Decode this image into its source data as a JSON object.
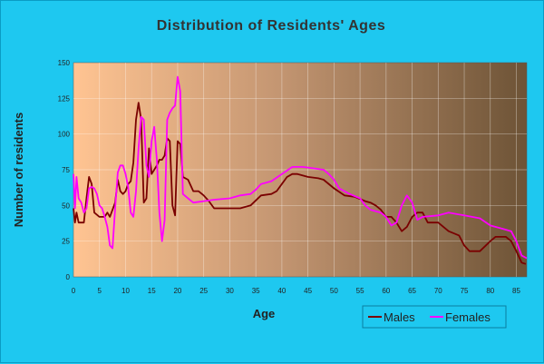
{
  "chart_data": {
    "type": "line",
    "title": "Distribution of Residents' Ages",
    "xlabel": "Age",
    "ylabel": "Number of residents",
    "xlim": [
      0,
      87
    ],
    "ylim": [
      0,
      150
    ],
    "x_ticks": [
      "0",
      "5",
      "10",
      "15",
      "20",
      "25",
      "30",
      "35",
      "40",
      "45",
      "50",
      "55",
      "60",
      "65",
      "70",
      "75",
      "80",
      "85"
    ],
    "y_ticks": [
      "0",
      "25",
      "50",
      "75",
      "100",
      "125",
      "150"
    ],
    "legend_position": "bottom-right",
    "grid": true,
    "series": [
      {
        "name": "Males",
        "color": "#7a0000",
        "points": [
          [
            0,
            48
          ],
          [
            0.3,
            38
          ],
          [
            0.6,
            45
          ],
          [
            1,
            38
          ],
          [
            2,
            38
          ],
          [
            2.5,
            55
          ],
          [
            3,
            70
          ],
          [
            3.5,
            65
          ],
          [
            4,
            45
          ],
          [
            5,
            42
          ],
          [
            6,
            42
          ],
          [
            6.5,
            45
          ],
          [
            7,
            42
          ],
          [
            8,
            52
          ],
          [
            8.5,
            68
          ],
          [
            9,
            60
          ],
          [
            9.5,
            58
          ],
          [
            10,
            60
          ],
          [
            10.5,
            65
          ],
          [
            11,
            67
          ],
          [
            11.5,
            80
          ],
          [
            12,
            110
          ],
          [
            12.5,
            122
          ],
          [
            13,
            110
          ],
          [
            13.5,
            52
          ],
          [
            14,
            55
          ],
          [
            14.5,
            90
          ],
          [
            15,
            72
          ],
          [
            15.5,
            75
          ],
          [
            16,
            78
          ],
          [
            16.5,
            82
          ],
          [
            17,
            82
          ],
          [
            17.5,
            85
          ],
          [
            18,
            97
          ],
          [
            18.5,
            95
          ],
          [
            19,
            50
          ],
          [
            19.5,
            43
          ],
          [
            20,
            95
          ],
          [
            20.5,
            93
          ],
          [
            21,
            70
          ],
          [
            22,
            68
          ],
          [
            23,
            60
          ],
          [
            24,
            60
          ],
          [
            25,
            57
          ],
          [
            26,
            53
          ],
          [
            27,
            48
          ],
          [
            28,
            48
          ],
          [
            30,
            48
          ],
          [
            32,
            48
          ],
          [
            34,
            50
          ],
          [
            36,
            57
          ],
          [
            38,
            58
          ],
          [
            39,
            60
          ],
          [
            40,
            65
          ],
          [
            41,
            70
          ],
          [
            42,
            72
          ],
          [
            43,
            72
          ],
          [
            45,
            70
          ],
          [
            47,
            69
          ],
          [
            48,
            68
          ],
          [
            50,
            62
          ],
          [
            52,
            57
          ],
          [
            54,
            56
          ],
          [
            56,
            53
          ],
          [
            57,
            52
          ],
          [
            58,
            50
          ],
          [
            59,
            47
          ],
          [
            60,
            42
          ],
          [
            61,
            42
          ],
          [
            62,
            38
          ],
          [
            63,
            32
          ],
          [
            64,
            35
          ],
          [
            65,
            42
          ],
          [
            66,
            45
          ],
          [
            67,
            45
          ],
          [
            68,
            38
          ],
          [
            70,
            38
          ],
          [
            72,
            32
          ],
          [
            74,
            29
          ],
          [
            75,
            22
          ],
          [
            76,
            18
          ],
          [
            78,
            18
          ],
          [
            80,
            25
          ],
          [
            81,
            28
          ],
          [
            83,
            28
          ],
          [
            84,
            25
          ],
          [
            85,
            18
          ],
          [
            86,
            10
          ],
          [
            86.8,
            9
          ]
        ]
      },
      {
        "name": "Females",
        "color": "#ff00ff",
        "points": [
          [
            0,
            72
          ],
          [
            0.3,
            48
          ],
          [
            0.6,
            70
          ],
          [
            1,
            55
          ],
          [
            1.5,
            52
          ],
          [
            2,
            45
          ],
          [
            2.5,
            48
          ],
          [
            3,
            62
          ],
          [
            3.5,
            63
          ],
          [
            4,
            62
          ],
          [
            4.5,
            58
          ],
          [
            5,
            50
          ],
          [
            5.5,
            48
          ],
          [
            6,
            42
          ],
          [
            6.5,
            35
          ],
          [
            7,
            22
          ],
          [
            7.5,
            20
          ],
          [
            8,
            48
          ],
          [
            8.5,
            73
          ],
          [
            9,
            78
          ],
          [
            9.5,
            78
          ],
          [
            10,
            72
          ],
          [
            10.5,
            63
          ],
          [
            11,
            45
          ],
          [
            11.5,
            42
          ],
          [
            12,
            60
          ],
          [
            12.5,
            90
          ],
          [
            13,
            112
          ],
          [
            13.5,
            110
          ],
          [
            14,
            78
          ],
          [
            14.5,
            70
          ],
          [
            15,
            95
          ],
          [
            15.5,
            105
          ],
          [
            16,
            82
          ],
          [
            16.5,
            45
          ],
          [
            17,
            25
          ],
          [
            17.5,
            40
          ],
          [
            18,
            110
          ],
          [
            18.5,
            115
          ],
          [
            19,
            118
          ],
          [
            19.5,
            120
          ],
          [
            20,
            140
          ],
          [
            20.5,
            130
          ],
          [
            21,
            58
          ],
          [
            22,
            55
          ],
          [
            23,
            52
          ],
          [
            25,
            53
          ],
          [
            27,
            54
          ],
          [
            30,
            55
          ],
          [
            32,
            57
          ],
          [
            34,
            58
          ],
          [
            35,
            61
          ],
          [
            36,
            65
          ],
          [
            38,
            67
          ],
          [
            40,
            72
          ],
          [
            42,
            77
          ],
          [
            44,
            77
          ],
          [
            46,
            76
          ],
          [
            48,
            75
          ],
          [
            49,
            72
          ],
          [
            50,
            68
          ],
          [
            51,
            62
          ],
          [
            53,
            58
          ],
          [
            55,
            55
          ],
          [
            56,
            50
          ],
          [
            57,
            47
          ],
          [
            59,
            45
          ],
          [
            60,
            42
          ],
          [
            61,
            36
          ],
          [
            62,
            38
          ],
          [
            63,
            50
          ],
          [
            64,
            57
          ],
          [
            65,
            52
          ],
          [
            66,
            40
          ],
          [
            67,
            42
          ],
          [
            70,
            43
          ],
          [
            72,
            45
          ],
          [
            75,
            43
          ],
          [
            78,
            41
          ],
          [
            80,
            36
          ],
          [
            82,
            34
          ],
          [
            84,
            32
          ],
          [
            85,
            25
          ],
          [
            86,
            15
          ],
          [
            87,
            13
          ]
        ]
      }
    ]
  }
}
